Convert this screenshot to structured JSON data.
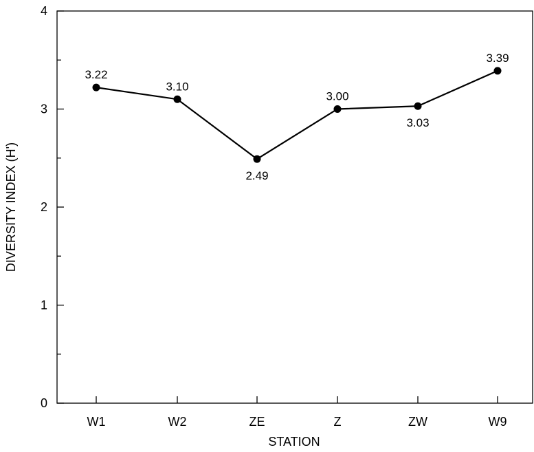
{
  "chart_data": {
    "type": "line",
    "title": "",
    "xlabel": "STATION",
    "ylabel": "DIVERSITY INDEX (H')",
    "categories": [
      "W1",
      "W2",
      "ZE",
      "Z",
      "ZW",
      "W9"
    ],
    "series": [
      {
        "values": [
          3.22,
          3.1,
          2.49,
          3.0,
          3.03,
          3.39
        ],
        "labels": [
          "3.22",
          "3.10",
          "2.49",
          "3.00",
          "3.03",
          "3.39"
        ],
        "label_positions": [
          "above",
          "above",
          "below",
          "above",
          "below",
          "above"
        ]
      }
    ],
    "yticks": [
      0,
      1,
      2,
      3,
      4
    ],
    "ytick_labels": [
      "0",
      "1",
      "2",
      "3",
      "4"
    ],
    "ylim": [
      0,
      4
    ],
    "minor_y_step": 0.5,
    "grid": false,
    "line_color": "#000000",
    "marker": "filled-circle"
  }
}
